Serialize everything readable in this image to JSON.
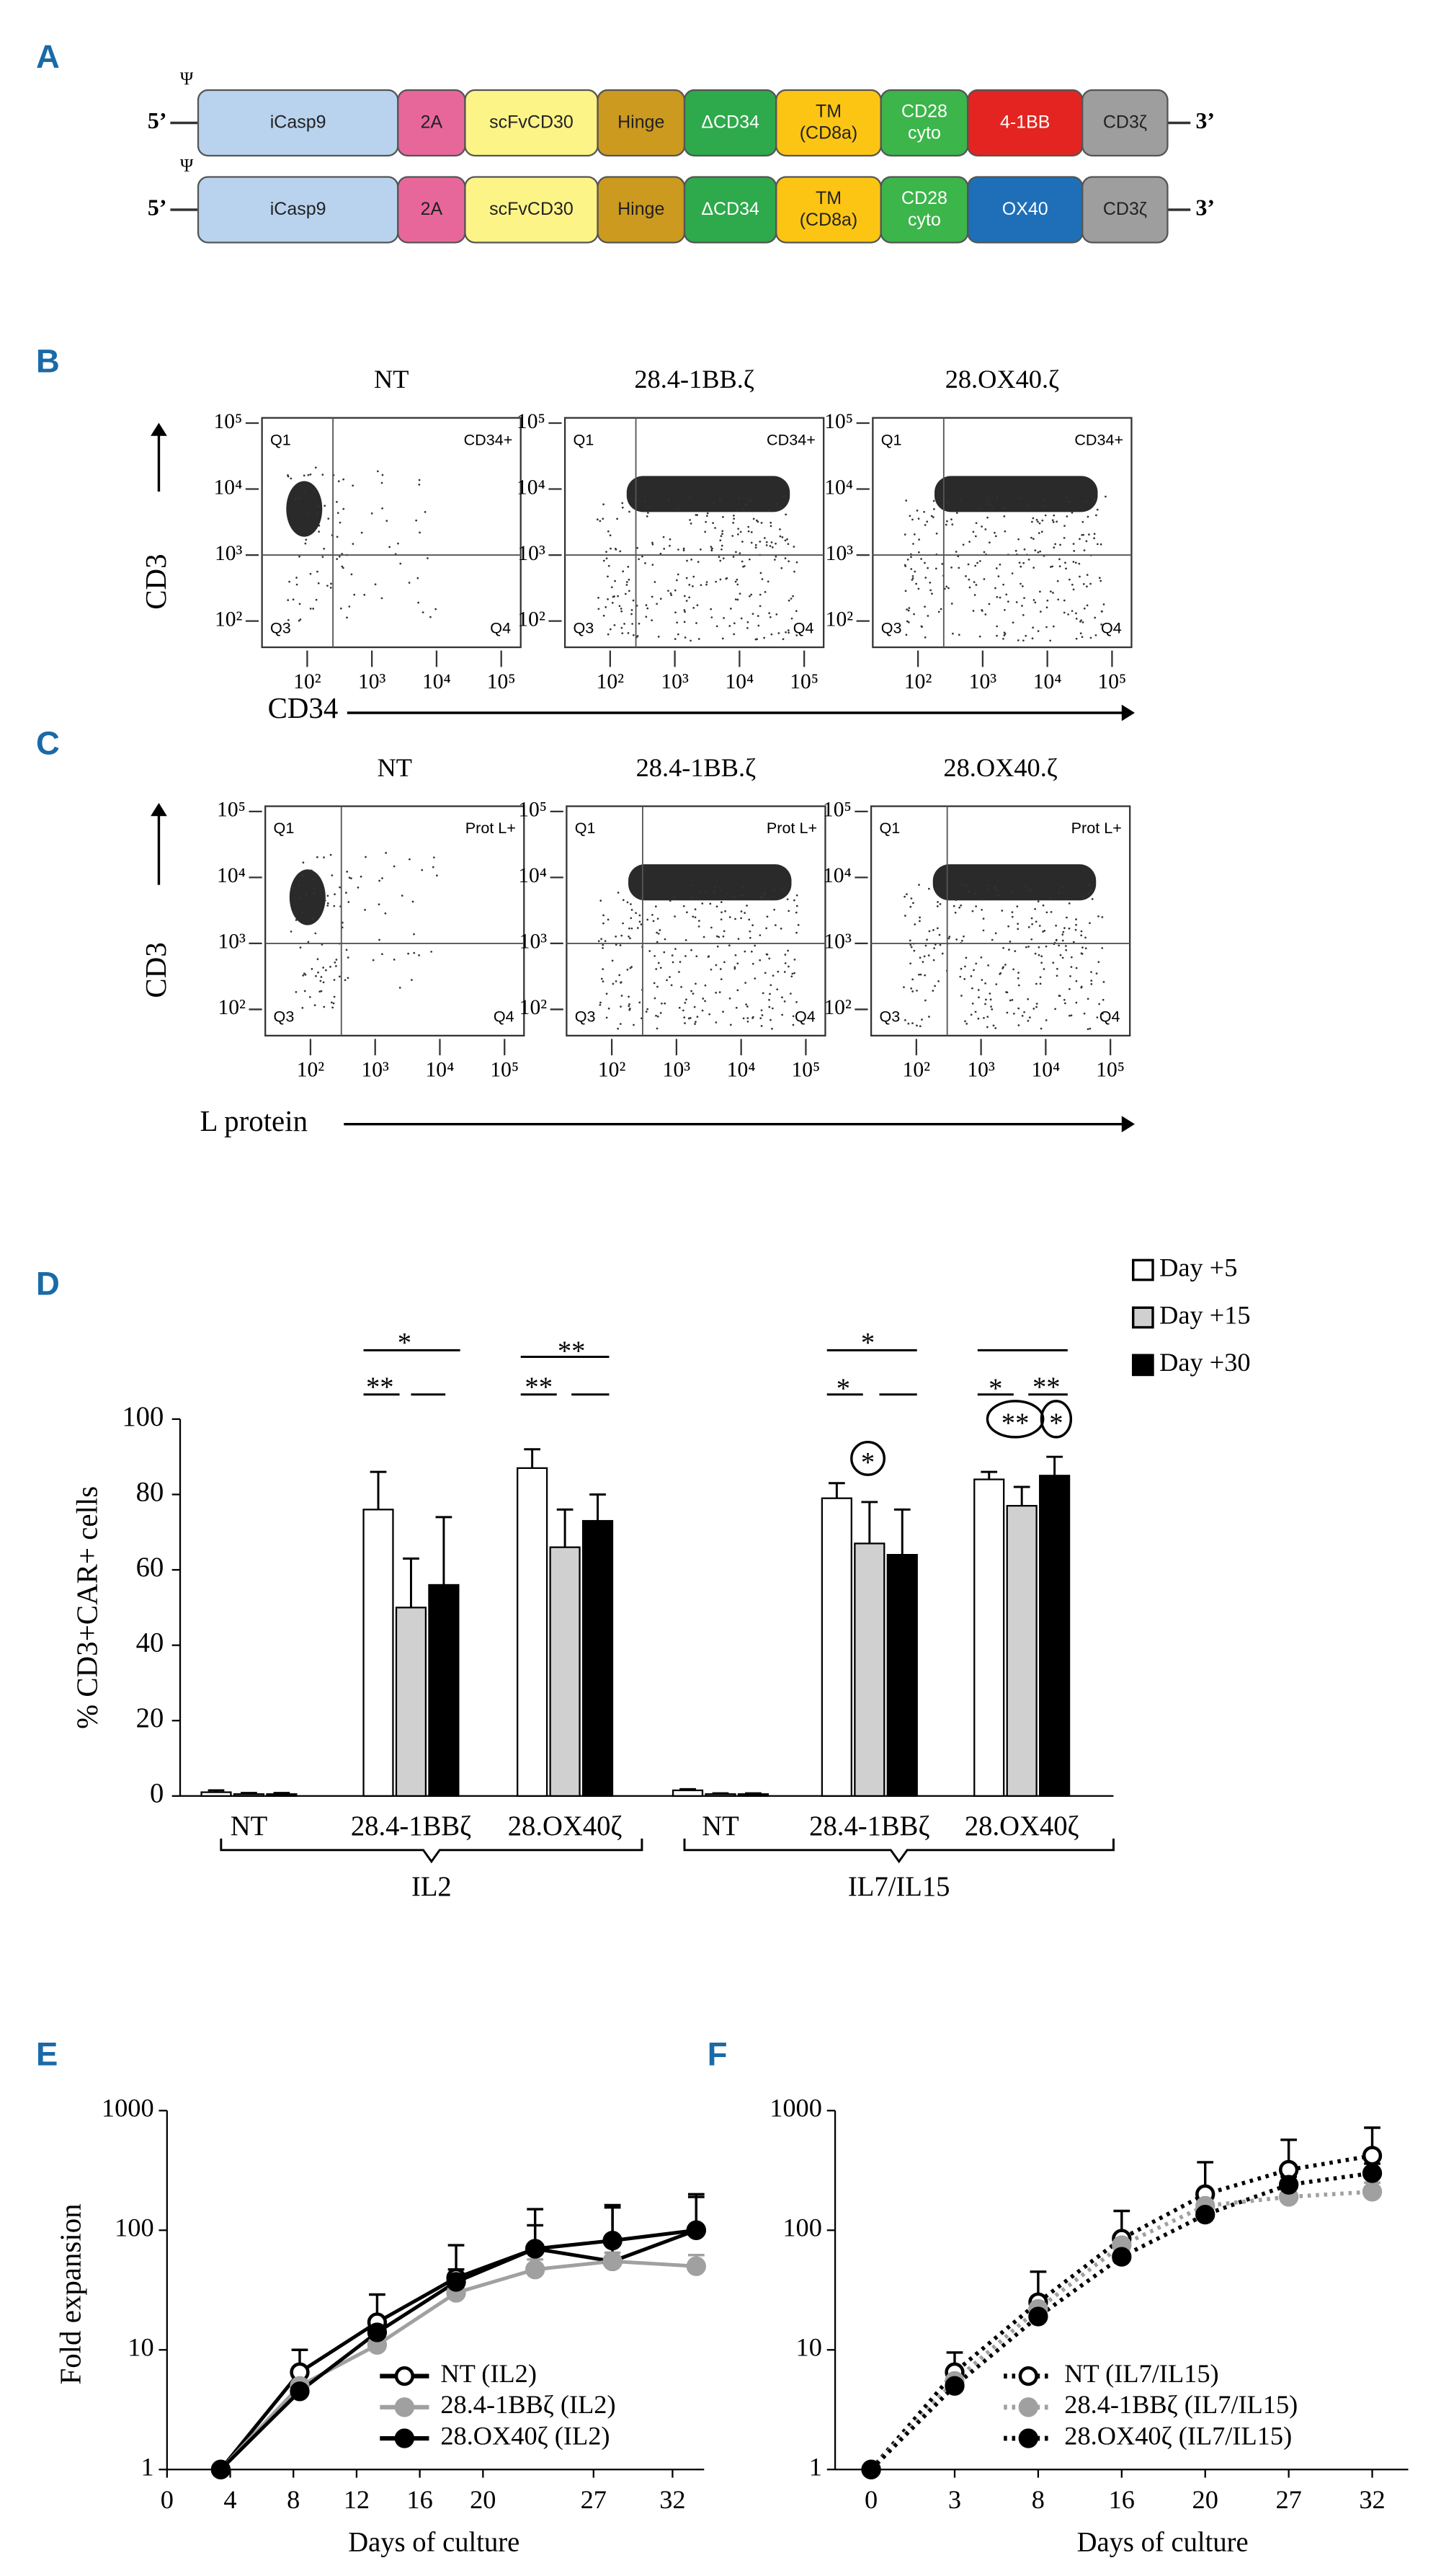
{
  "construct_diagram": {
    "panel": "A",
    "psi": "Ψ",
    "five_prime": "5’",
    "three_prime": "3’",
    "constructs": [
      {
        "segments": [
          {
            "label": [
              "iCasp9"
            ],
            "color": "#b9d3ee"
          },
          {
            "label": [
              "2A"
            ],
            "color": "#e8679b"
          },
          {
            "label": [
              "scFvCD30"
            ],
            "color": "#fdf488"
          },
          {
            "label": [
              "Hinge"
            ],
            "color": "#cc9a1f"
          },
          {
            "label": [
              "ΔCD34"
            ],
            "color": "#2ea94b"
          },
          {
            "label": [
              "TM",
              "(CD8a)"
            ],
            "color": "#fcc514"
          },
          {
            "label": [
              "CD28",
              "cyto"
            ],
            "color": "#3cb54a"
          },
          {
            "label": [
              "4-1BB"
            ],
            "color": "#e32420"
          },
          {
            "label": [
              "CD3ζ"
            ],
            "color": "#9e9e9e"
          }
        ]
      },
      {
        "segments": [
          {
            "label": [
              "iCasp9"
            ],
            "color": "#b9d3ee"
          },
          {
            "label": [
              "2A"
            ],
            "color": "#e8679b"
          },
          {
            "label": [
              "scFvCD30"
            ],
            "color": "#fdf488"
          },
          {
            "label": [
              "Hinge"
            ],
            "color": "#cc9a1f"
          },
          {
            "label": [
              "ΔCD34"
            ],
            "color": "#2ea94b"
          },
          {
            "label": [
              "TM",
              "(CD8a)"
            ],
            "color": "#fcc514"
          },
          {
            "label": [
              "CD28",
              "cyto"
            ],
            "color": "#3cb54a"
          },
          {
            "label": [
              "OX40"
            ],
            "color": "#1e6fb8"
          },
          {
            "label": [
              "CD3ζ"
            ],
            "color": "#9e9e9e"
          }
        ]
      }
    ]
  },
  "chart_data": [
    {
      "type": "flow",
      "panel": "B",
      "xlabel": "CD34",
      "ylabel": "CD3",
      "xscale": "log",
      "yscale": "log",
      "xlim": [
        20,
        200000
      ],
      "ylim": [
        40,
        120000
      ],
      "xticks": [
        {
          "value": 100,
          "label": "10²"
        },
        {
          "value": 1000,
          "label": "10³"
        },
        {
          "value": 10000,
          "label": "10⁴"
        },
        {
          "value": 100000,
          "label": "10⁵"
        }
      ],
      "yticks": [
        {
          "value": 100,
          "label": "10²"
        },
        {
          "value": 1000,
          "label": "10³"
        },
        {
          "value": 10000,
          "label": "10⁴"
        },
        {
          "value": 100000,
          "label": "10⁵"
        }
      ],
      "gate_x": 250,
      "gate_y": 1000,
      "plots": [
        {
          "title": "NT",
          "quadrants": [
            "Q1",
            "CD34+",
            "Q3",
            "Q4"
          ]
        },
        {
          "title": "28.4-1BB.ζ",
          "quadrants": [
            "Q1",
            "CD34+",
            "Q3",
            "Q4"
          ]
        },
        {
          "title": "28.OX40.ζ",
          "quadrants": [
            "Q1",
            "CD34+",
            "Q3",
            "Q4"
          ]
        }
      ]
    },
    {
      "type": "flow",
      "panel": "C",
      "xlabel": "L protein",
      "ylabel": "CD3",
      "xscale": "log",
      "yscale": "log",
      "xlim": [
        20,
        200000
      ],
      "ylim": [
        40,
        120000
      ],
      "xticks": [
        {
          "value": 100,
          "label": "10²"
        },
        {
          "value": 1000,
          "label": "10³"
        },
        {
          "value": 10000,
          "label": "10⁴"
        },
        {
          "value": 100000,
          "label": "10⁵"
        }
      ],
      "yticks": [
        {
          "value": 100,
          "label": "10²"
        },
        {
          "value": 1000,
          "label": "10³"
        },
        {
          "value": 10000,
          "label": "10⁴"
        },
        {
          "value": 100000,
          "label": "10⁵"
        }
      ],
      "gate_x": 300,
      "gate_y": 1000,
      "plots": [
        {
          "title": "NT",
          "quadrants": [
            "Q1",
            "Prot L+",
            "Q3",
            "Q4"
          ]
        },
        {
          "title": "28.4-1BB.ζ",
          "quadrants": [
            "Q1",
            "Prot L+",
            "Q3",
            "Q4"
          ]
        },
        {
          "title": "28.OX40.ζ",
          "quadrants": [
            "Q1",
            "Prot L+",
            "Q3",
            "Q4"
          ]
        }
      ]
    },
    {
      "type": "bar",
      "panel": "D",
      "ylabel": "% CD3+CAR+ cells",
      "ylim": [
        0,
        100
      ],
      "yticks": [
        0,
        20,
        40,
        60,
        80,
        100
      ],
      "groups": [
        {
          "label": "IL2",
          "categories": [
            "NT",
            "28.4-1BBζ",
            "28.OX40ζ"
          ]
        },
        {
          "label": "IL7/IL15",
          "categories": [
            "NT",
            "28.4-1BBζ",
            "28.OX40ζ"
          ]
        }
      ],
      "series": [
        {
          "name": "Day +5",
          "color": "#ffffff",
          "values": [
            1,
            76,
            87,
            1.5,
            79,
            84
          ],
          "errors": [
            0.5,
            10,
            5,
            0.3,
            4,
            2
          ]
        },
        {
          "name": "Day +15",
          "color": "#d0d0d0",
          "values": [
            0.5,
            50,
            66,
            0.5,
            67,
            77
          ],
          "errors": [
            0.3,
            13,
            10,
            0.2,
            11,
            5
          ]
        },
        {
          "name": "Day +30",
          "color": "#000000",
          "values": [
            0.5,
            56,
            73,
            0.5,
            64,
            85
          ],
          "errors": [
            0.3,
            18,
            7,
            0.2,
            12,
            5
          ]
        }
      ],
      "annotations": [
        "*",
        "**",
        "**",
        "**",
        "*",
        "*",
        "*",
        "**",
        "**",
        "*",
        "*"
      ]
    },
    {
      "type": "line",
      "panel": "E",
      "ylabel": "Fold expansion",
      "xlabel": "Days of culture",
      "yscale": "log",
      "ylim": [
        1,
        1000
      ],
      "yticks": [
        1,
        10,
        100,
        1000
      ],
      "xlim": [
        0,
        34
      ],
      "xticks": [
        0,
        4,
        8,
        12,
        16,
        20,
        27,
        32
      ],
      "x": [
        3.4,
        8.4,
        13.3,
        18.3,
        23.3,
        28.2,
        33.5
      ],
      "line_style": "solid",
      "series": [
        {
          "name": "NT (IL2)",
          "color": "#000000",
          "marker_fill": "#ffffff",
          "values": [
            1,
            6.5,
            17,
            40,
            70,
            55,
            100
          ],
          "errors": [
            0,
            3.5,
            12,
            35,
            80,
            100,
            100
          ]
        },
        {
          "name": "28.4-1BBζ  (IL2)",
          "color": "#a0a0a0",
          "marker_fill": "#a0a0a0",
          "values": [
            1,
            5,
            11,
            30,
            47,
            55,
            50
          ],
          "errors": [
            0,
            1,
            3,
            6,
            10,
            10,
            12
          ]
        },
        {
          "name": "28.OX40ζ  (IL2)",
          "color": "#000000",
          "marker_fill": "#000000",
          "values": [
            1,
            4.5,
            14,
            37,
            70,
            82,
            100
          ],
          "errors": [
            0,
            1,
            4,
            10,
            40,
            80,
            90
          ]
        }
      ]
    },
    {
      "type": "line",
      "panel": "F",
      "xlabel": "Days of culture",
      "yscale": "log",
      "ylim": [
        1,
        1000
      ],
      "yticks": [
        1,
        10,
        100,
        1000
      ],
      "categories": [
        "0",
        "3",
        "8",
        "16",
        "20",
        "27",
        "32"
      ],
      "line_style": "dotted",
      "series": [
        {
          "name": "NT (IL7/IL15)",
          "color": "#000000",
          "marker_fill": "#ffffff",
          "values": [
            1,
            6.5,
            25,
            85,
            200,
            320,
            420
          ],
          "errors": [
            0,
            3,
            20,
            60,
            170,
            250,
            300
          ]
        },
        {
          "name": "28.4-1BBζ  (IL7/IL15)",
          "color": "#a0a0a0",
          "marker_fill": "#a0a0a0",
          "values": [
            1,
            5.5,
            22,
            75,
            160,
            190,
            210
          ],
          "errors": [
            0,
            1,
            5,
            15,
            30,
            30,
            40
          ]
        },
        {
          "name": "28.OX40ζ  (IL7/IL15)",
          "color": "#000000",
          "marker_fill": "#000000",
          "values": [
            1,
            5,
            19,
            60,
            135,
            240,
            300
          ],
          "errors": [
            0,
            1,
            3,
            10,
            20,
            40,
            60
          ]
        }
      ]
    }
  ]
}
